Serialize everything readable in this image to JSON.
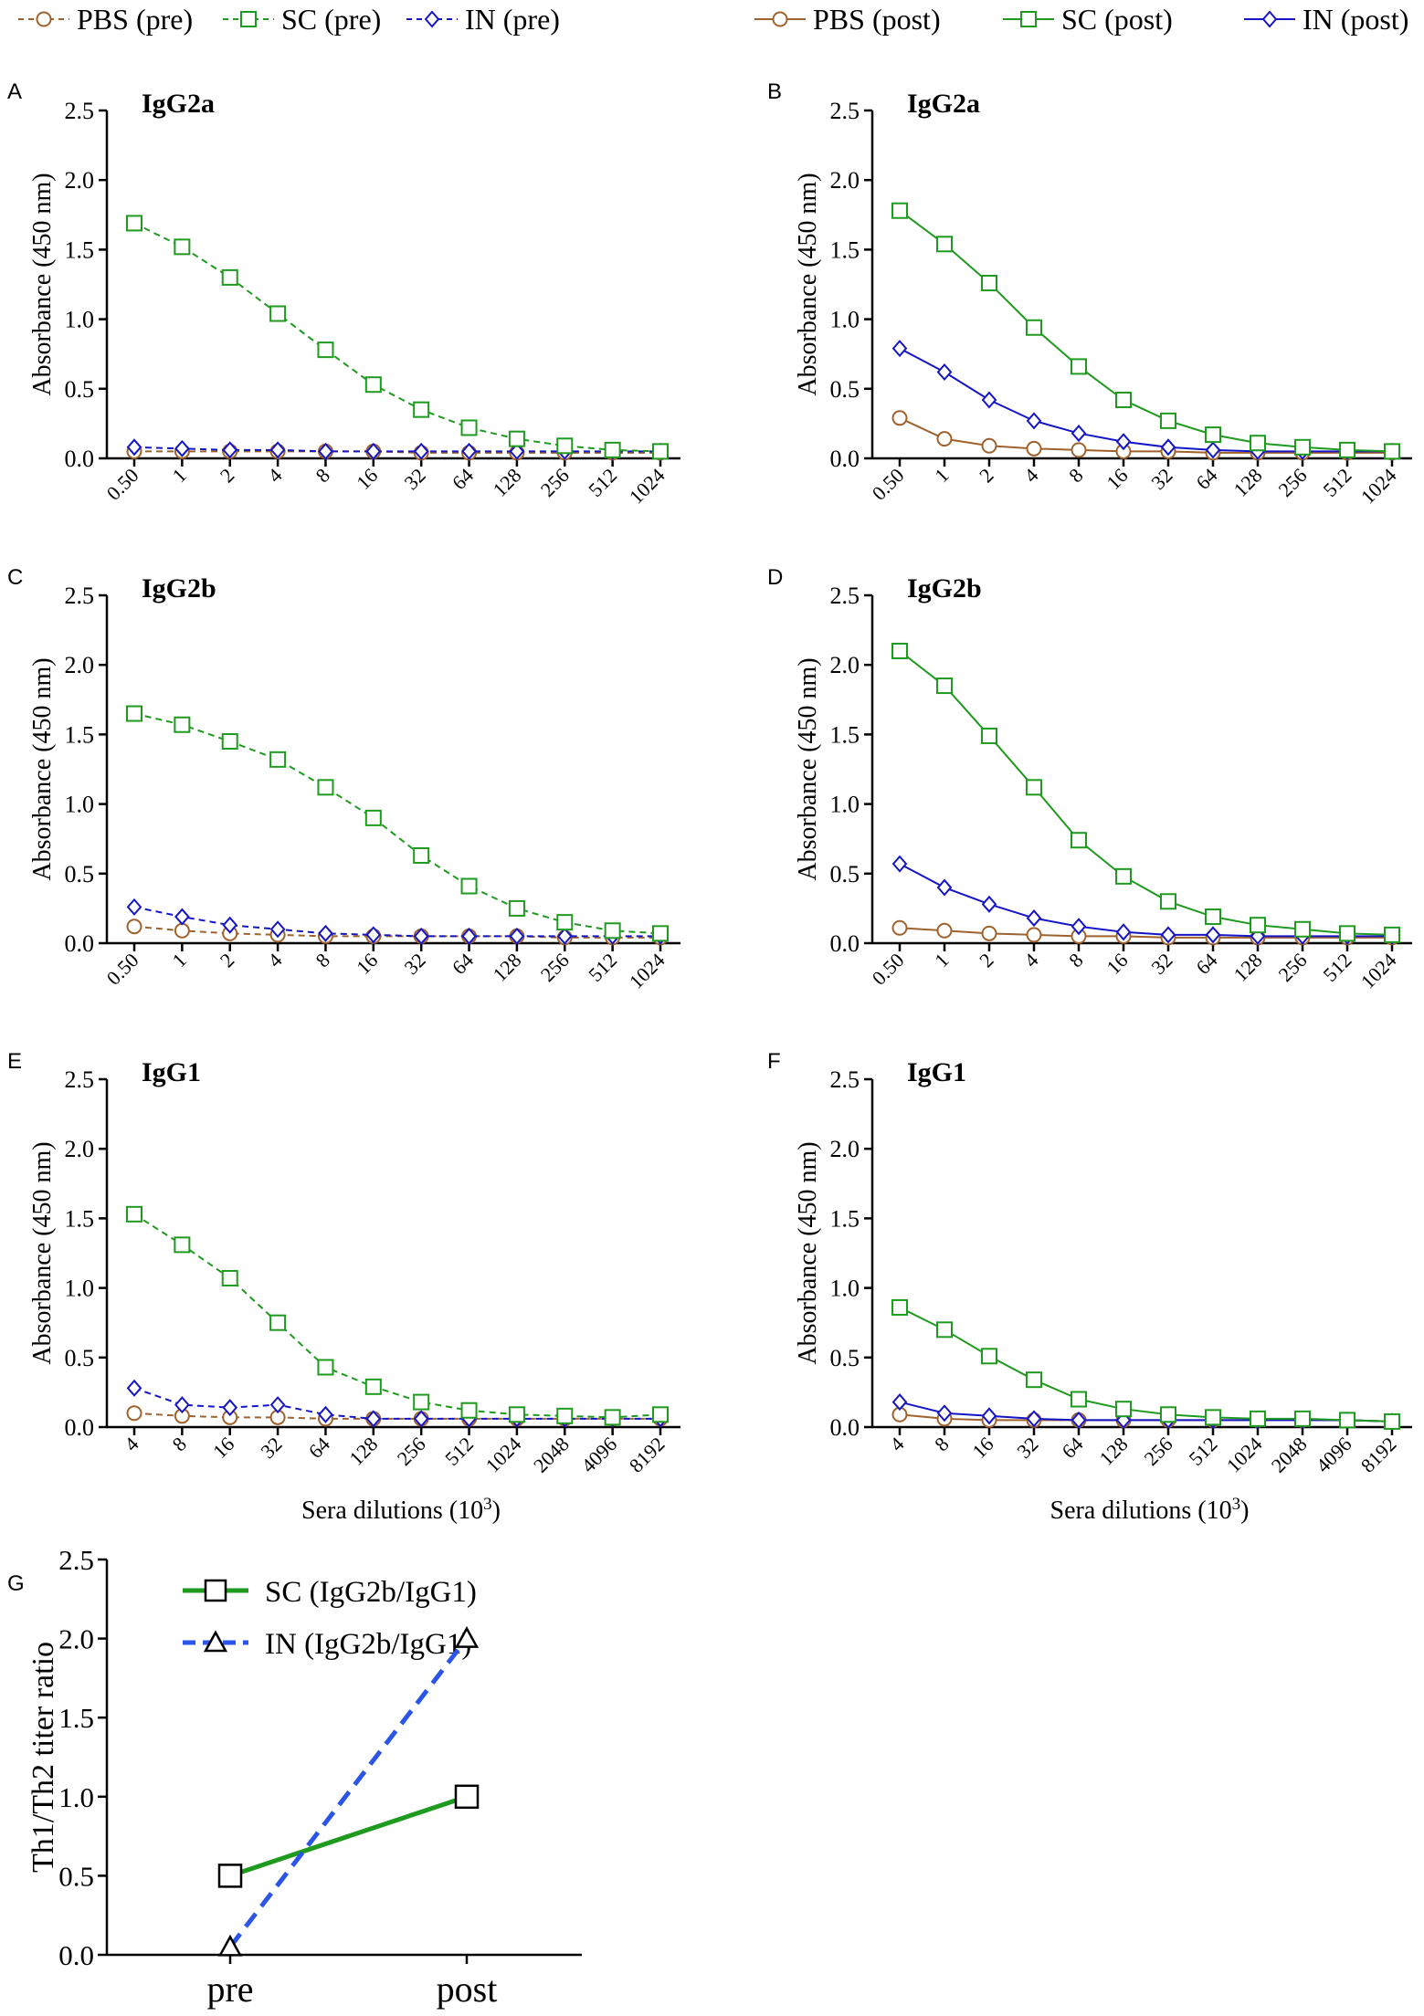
{
  "legends": {
    "pre": [
      {
        "label": "PBS (pre)",
        "color": "#a0622d",
        "marker": "circle",
        "dash": true
      },
      {
        "label": "SC (pre)",
        "color": "#1e9a1e",
        "marker": "square",
        "dash": true
      },
      {
        "label": "IN (pre)",
        "color": "#1515c8",
        "marker": "diamond",
        "dash": true
      }
    ],
    "post": [
      {
        "label": "PBS (post)",
        "color": "#a0622d",
        "marker": "circle",
        "dash": false
      },
      {
        "label": "SC (post)",
        "color": "#1e9a1e",
        "marker": "square",
        "dash": false
      },
      {
        "label": "IN (post)",
        "color": "#1515c8",
        "marker": "diamond",
        "dash": false
      }
    ]
  },
  "chart_data": [
    {
      "panel": "A",
      "type": "line",
      "title": "IgG2a",
      "ylabel": "Absorbance (450 nm)",
      "xlabel": "",
      "ylim": [
        0,
        2.5
      ],
      "yticks": [
        "0.0",
        "0.5",
        "1.0",
        "1.5",
        "2.0",
        "2.5"
      ],
      "categories": [
        "0.50",
        "1",
        "2",
        "4",
        "8",
        "16",
        "32",
        "64",
        "128",
        "256",
        "512",
        "1024"
      ],
      "series": [
        {
          "name": "PBS (pre)",
          "values": [
            0.05,
            0.05,
            0.05,
            0.05,
            0.05,
            0.05,
            0.04,
            0.04,
            0.04,
            0.04,
            0.04,
            0.04
          ]
        },
        {
          "name": "SC (pre)",
          "values": [
            1.69,
            1.52,
            1.3,
            1.04,
            0.78,
            0.53,
            0.35,
            0.22,
            0.14,
            0.09,
            0.06,
            0.05
          ]
        },
        {
          "name": "IN (pre)",
          "values": [
            0.08,
            0.07,
            0.06,
            0.06,
            0.05,
            0.05,
            0.05,
            0.05,
            0.05,
            0.05,
            0.05,
            0.05
          ]
        }
      ]
    },
    {
      "panel": "B",
      "type": "line",
      "title": "IgG2a",
      "ylabel": "Absorbance (450 nm)",
      "xlabel": "",
      "ylim": [
        0,
        2.5
      ],
      "yticks": [
        "0.0",
        "0.5",
        "1.0",
        "1.5",
        "2.0",
        "2.5"
      ],
      "categories": [
        "0.50",
        "1",
        "2",
        "4",
        "8",
        "16",
        "32",
        "64",
        "128",
        "256",
        "512",
        "1024"
      ],
      "series": [
        {
          "name": "PBS (post)",
          "values": [
            0.29,
            0.14,
            0.09,
            0.07,
            0.06,
            0.05,
            0.05,
            0.04,
            0.04,
            0.04,
            0.04,
            0.04
          ]
        },
        {
          "name": "SC (post)",
          "values": [
            1.78,
            1.54,
            1.26,
            0.94,
            0.66,
            0.42,
            0.27,
            0.17,
            0.11,
            0.08,
            0.06,
            0.05
          ]
        },
        {
          "name": "IN (post)",
          "values": [
            0.79,
            0.62,
            0.42,
            0.27,
            0.18,
            0.12,
            0.08,
            0.06,
            0.05,
            0.05,
            0.05,
            0.05
          ]
        }
      ]
    },
    {
      "panel": "C",
      "type": "line",
      "title": "IgG2b",
      "ylabel": "Absorbance (450 nm)",
      "xlabel": "",
      "ylim": [
        0,
        2.5
      ],
      "yticks": [
        "0.0",
        "0.5",
        "1.0",
        "1.5",
        "2.0",
        "2.5"
      ],
      "categories": [
        "0.50",
        "1",
        "2",
        "4",
        "8",
        "16",
        "32",
        "64",
        "128",
        "256",
        "512",
        "1024"
      ],
      "series": [
        {
          "name": "PBS (pre)",
          "values": [
            0.12,
            0.09,
            0.07,
            0.06,
            0.05,
            0.05,
            0.05,
            0.05,
            0.05,
            0.04,
            0.04,
            0.04
          ]
        },
        {
          "name": "SC (pre)",
          "values": [
            1.65,
            1.57,
            1.45,
            1.32,
            1.12,
            0.9,
            0.63,
            0.41,
            0.25,
            0.15,
            0.09,
            0.07
          ]
        },
        {
          "name": "IN (pre)",
          "values": [
            0.26,
            0.19,
            0.13,
            0.1,
            0.07,
            0.06,
            0.05,
            0.05,
            0.05,
            0.05,
            0.05,
            0.05
          ]
        }
      ]
    },
    {
      "panel": "D",
      "type": "line",
      "title": "IgG2b",
      "ylabel": "Absorbance (450 nm)",
      "xlabel": "",
      "ylim": [
        0,
        2.5
      ],
      "yticks": [
        "0.0",
        "0.5",
        "1.0",
        "1.5",
        "2.0",
        "2.5"
      ],
      "categories": [
        "0.50",
        "1",
        "2",
        "4",
        "8",
        "16",
        "32",
        "64",
        "128",
        "256",
        "512",
        "1024"
      ],
      "series": [
        {
          "name": "PBS (post)",
          "values": [
            0.11,
            0.09,
            0.07,
            0.06,
            0.05,
            0.05,
            0.04,
            0.04,
            0.04,
            0.04,
            0.04,
            0.04
          ]
        },
        {
          "name": "SC (post)",
          "values": [
            2.1,
            1.85,
            1.49,
            1.12,
            0.74,
            0.48,
            0.3,
            0.19,
            0.13,
            0.1,
            0.07,
            0.06
          ]
        },
        {
          "name": "IN (post)",
          "values": [
            0.57,
            0.4,
            0.28,
            0.18,
            0.12,
            0.08,
            0.06,
            0.06,
            0.05,
            0.05,
            0.05,
            0.05
          ]
        }
      ]
    },
    {
      "panel": "E",
      "type": "line",
      "title": "IgG1",
      "ylabel": "Absorbance (450 nm)",
      "xlabel": "Sera dilutions (10",
      "xlabel_sup": "3",
      "xlabel_end": ")",
      "ylim": [
        0,
        2.5
      ],
      "yticks": [
        "0.0",
        "0.5",
        "1.0",
        "1.5",
        "2.0",
        "2.5"
      ],
      "categories": [
        "4",
        "8",
        "16",
        "32",
        "64",
        "128",
        "256",
        "512",
        "1024",
        "2048",
        "4096",
        "8192"
      ],
      "series": [
        {
          "name": "PBS (pre)",
          "values": [
            0.1,
            0.08,
            0.07,
            0.07,
            0.06,
            0.06,
            0.06,
            0.06,
            0.06,
            0.06,
            0.06,
            0.06
          ]
        },
        {
          "name": "SC (pre)",
          "values": [
            1.53,
            1.31,
            1.07,
            0.75,
            0.43,
            0.29,
            0.18,
            0.12,
            0.09,
            0.08,
            0.07,
            0.09
          ]
        },
        {
          "name": "IN (pre)",
          "values": [
            0.28,
            0.16,
            0.14,
            0.16,
            0.09,
            0.06,
            0.06,
            0.06,
            0.06,
            0.06,
            0.06,
            0.06
          ]
        }
      ]
    },
    {
      "panel": "F",
      "type": "line",
      "title": "IgG1",
      "ylabel": "Absorbance (450 nm)",
      "xlabel": "Sera dilutions (10",
      "xlabel_sup": "3",
      "xlabel_end": ")",
      "ylim": [
        0,
        2.5
      ],
      "yticks": [
        "0.0",
        "0.5",
        "1.0",
        "1.5",
        "2.0",
        "2.5"
      ],
      "categories": [
        "4",
        "8",
        "16",
        "32",
        "64",
        "128",
        "256",
        "512",
        "1024",
        "2048",
        "4096",
        "8192"
      ],
      "series": [
        {
          "name": "PBS (post)",
          "values": [
            0.09,
            0.06,
            0.05,
            0.05,
            0.05,
            0.05,
            0.05,
            0.05,
            0.05,
            0.05,
            0.05,
            0.04
          ]
        },
        {
          "name": "SC (post)",
          "values": [
            0.86,
            0.7,
            0.51,
            0.34,
            0.2,
            0.13,
            0.09,
            0.07,
            0.06,
            0.06,
            0.05,
            0.04
          ]
        },
        {
          "name": "IN (post)",
          "values": [
            0.18,
            0.1,
            0.08,
            0.06,
            0.05,
            0.05,
            0.05,
            0.05,
            0.05,
            0.05,
            0.05,
            0.04
          ]
        }
      ]
    },
    {
      "panel": "G",
      "type": "line",
      "title": "",
      "ylabel": "Th1/Th2 titer ratio",
      "xlabel": "",
      "ylim": [
        0,
        2.5
      ],
      "yticks": [
        "0.0",
        "0.5",
        "1.0",
        "1.5",
        "2.0",
        "2.5"
      ],
      "categories": [
        "pre",
        "post"
      ],
      "series": [
        {
          "name": "SC (IgG2b/IgG1)",
          "values": [
            0.5,
            1.0
          ],
          "color": "#1e9a1e",
          "marker": "square",
          "dash": false
        },
        {
          "name": "IN (IgG2b/IgG1)",
          "values": [
            0.05,
            2.0
          ],
          "color": "#2a55e8",
          "marker": "triangle",
          "dash": true
        }
      ]
    }
  ]
}
